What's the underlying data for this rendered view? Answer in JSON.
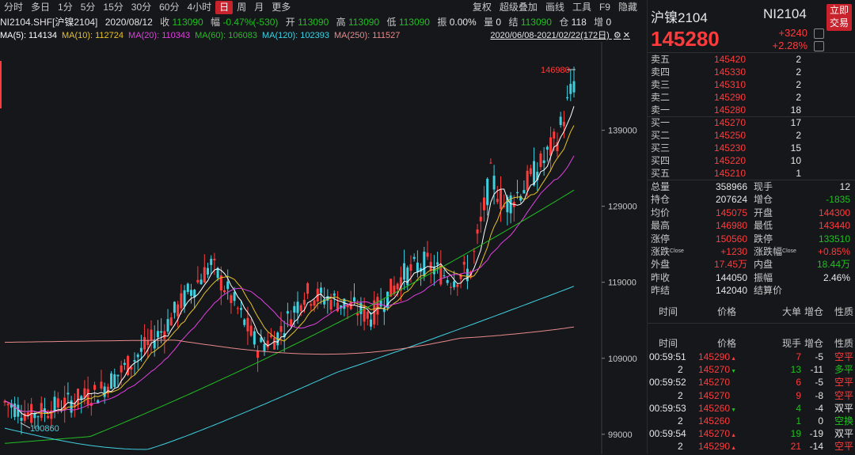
{
  "toolbar": {
    "periods": [
      "分时",
      "多日",
      "1分",
      "5分",
      "15分",
      "30分",
      "60分",
      "4小时",
      "日",
      "周",
      "月",
      "更多"
    ],
    "active": "日",
    "right": [
      "复权",
      "超级叠加",
      "画线",
      "工具",
      "F9",
      "隐藏"
    ]
  },
  "info": {
    "symbol": "NI2104.SHF[沪镍2104]",
    "date": "2020/08/12",
    "close_label": "收",
    "close": "113090",
    "amp_label": "幅",
    "amp": "-0.47%(-530)",
    "open_label": "开",
    "open": "113090",
    "high_label": "高",
    "high": "113090",
    "low_label": "低",
    "low": "113090",
    "swing_label": "振",
    "swing": "0.00%",
    "vol_label": "量",
    "vol": "0",
    "settle_label": "结",
    "settle": "113090",
    "oi_label": "仓",
    "oi": "118",
    "incr_label": "增",
    "incr": "0"
  },
  "ma": [
    {
      "label": "MA(5): 114134",
      "color": "#ffffff"
    },
    {
      "label": "MA(10): 112724",
      "color": "#e6c229"
    },
    {
      "label": "MA(20): 110343",
      "color": "#e040e0"
    },
    {
      "label": "MA(60): 106083",
      "color": "#22c022"
    },
    {
      "label": "MA(120): 102393",
      "color": "#3fd0e0"
    },
    {
      "label": "MA(250): 111527",
      "color": "#e88a8a"
    }
  ],
  "range": "2020/06/08-2021/02/22(172日)",
  "chart_data": {
    "type": "candlestick",
    "y_ticks": [
      99000,
      109000,
      119000,
      129000,
      139000
    ],
    "ylim": [
      97000,
      150000
    ],
    "high_label": "146980",
    "low_label": "100860",
    "colors": {
      "up": "#ff3b3b",
      "down": "#3fd0e0",
      "ma5": "#ffffff",
      "ma10": "#e6c229",
      "ma20": "#e040e0",
      "ma60": "#22c022",
      "ma120": "#3fd0e0",
      "ma250": "#e88a8a"
    }
  },
  "panel": {
    "title": "沪镍2104",
    "code": "NI2104",
    "trade_btn": [
      "立即",
      "交易"
    ],
    "price": "145280",
    "change": "+3240",
    "change_pct": "+2.28%",
    "asks": [
      {
        "label": "卖五",
        "price": "145420",
        "vol": "2"
      },
      {
        "label": "卖四",
        "price": "145330",
        "vol": "2"
      },
      {
        "label": "卖三",
        "price": "145310",
        "vol": "2"
      },
      {
        "label": "卖二",
        "price": "145290",
        "vol": "2"
      },
      {
        "label": "卖一",
        "price": "145280",
        "vol": "18"
      }
    ],
    "bids": [
      {
        "label": "买一",
        "price": "145270",
        "vol": "17"
      },
      {
        "label": "买二",
        "price": "145250",
        "vol": "2"
      },
      {
        "label": "买三",
        "price": "145230",
        "vol": "15"
      },
      {
        "label": "买四",
        "price": "145220",
        "vol": "10"
      },
      {
        "label": "买五",
        "price": "145210",
        "vol": "1"
      }
    ],
    "stats": [
      {
        "l1": "总量",
        "v1": "358966",
        "c1": "wh",
        "l2": "现手",
        "v2": "12",
        "c2": "wh"
      },
      {
        "l1": "持仓",
        "v1": "207624",
        "c1": "wh",
        "l2": "增仓",
        "v2": "-1835",
        "c2": "green"
      },
      {
        "l1": "均价",
        "v1": "145075",
        "c1": "red",
        "l2": "开盘",
        "v2": "144300",
        "c2": "red"
      },
      {
        "l1": "最高",
        "v1": "146980",
        "c1": "red",
        "l2": "最低",
        "v2": "143440",
        "c2": "red"
      },
      {
        "l1": "涨停",
        "v1": "150560",
        "c1": "red",
        "l2": "跌停",
        "v2": "133510",
        "c2": "green"
      },
      {
        "l1": "涨跌",
        "sup1": "Close",
        "v1": "+1230",
        "c1": "red",
        "l2": "涨跌幅",
        "sup2": "Close",
        "v2": "+0.85%",
        "c2": "red"
      },
      {
        "l1": "外盘",
        "v1": "17.45万",
        "c1": "red",
        "l2": "内盘",
        "v2": "18.44万",
        "c2": "green"
      },
      {
        "l1": "昨收",
        "v1": "144050",
        "c1": "wh",
        "l2": "振幅",
        "v2": "2.46%",
        "c2": "wh"
      },
      {
        "l1": "昨结",
        "v1": "142040",
        "c1": "wh",
        "l2": "结算价",
        "v2": "",
        "c2": "wh"
      }
    ],
    "tick_header1": [
      "时间",
      "价格",
      "大单",
      "增仓",
      "性质"
    ],
    "tick_header2": [
      "时间",
      "价格",
      "现手",
      "增仓",
      "性质"
    ],
    "ticks": [
      {
        "time": "00:59:51",
        "price": "145290",
        "arrow": "up",
        "vol": "7",
        "vc": "red",
        "incr": "-5",
        "ic": "wh",
        "nature": "空平",
        "nc": "red"
      },
      {
        "time": "2",
        "price": "145270",
        "arrow": "down",
        "vol": "13",
        "vc": "green",
        "incr": "-11",
        "ic": "wh",
        "nature": "多平",
        "nc": "green"
      },
      {
        "time": "00:59:52",
        "price": "145270",
        "arrow": "",
        "vol": "6",
        "vc": "red",
        "incr": "-5",
        "ic": "wh",
        "nature": "空平",
        "nc": "red"
      },
      {
        "time": "2",
        "price": "145270",
        "arrow": "",
        "vol": "9",
        "vc": "red",
        "incr": "-8",
        "ic": "wh",
        "nature": "空平",
        "nc": "red"
      },
      {
        "time": "00:59:53",
        "price": "145260",
        "arrow": "down",
        "vol": "4",
        "vc": "green",
        "incr": "-4",
        "ic": "wh",
        "nature": "双平",
        "nc": "wh"
      },
      {
        "time": "2",
        "price": "145260",
        "arrow": "",
        "vol": "1",
        "vc": "green",
        "incr": "0",
        "ic": "wh",
        "nature": "空换",
        "nc": "green"
      },
      {
        "time": "00:59:54",
        "price": "145270",
        "arrow": "up",
        "vol": "19",
        "vc": "green",
        "incr": "-19",
        "ic": "wh",
        "nature": "双平",
        "nc": "wh"
      },
      {
        "time": "2",
        "price": "145290",
        "arrow": "up",
        "vol": "21",
        "vc": "red",
        "incr": "-14",
        "ic": "wh",
        "nature": "空平",
        "nc": "red"
      }
    ]
  }
}
